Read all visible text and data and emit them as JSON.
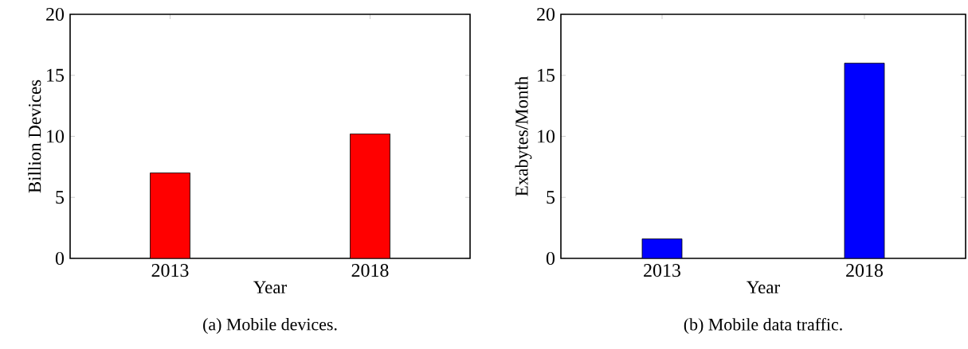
{
  "chart_data": [
    {
      "type": "bar",
      "title": "(a) Mobile devices.",
      "xlabel": "Year",
      "ylabel": "Billion Devices",
      "categories": [
        "2013",
        "2018"
      ],
      "values": [
        7.0,
        10.2
      ],
      "color": "#ff0000",
      "ylim": [
        0,
        20
      ],
      "yticks": [
        0,
        5,
        10,
        15,
        20
      ]
    },
    {
      "type": "bar",
      "title": "(b) Mobile data traffic.",
      "xlabel": "Year",
      "ylabel": "Exabytes/Month",
      "categories": [
        "2013",
        "2018"
      ],
      "values": [
        1.6,
        16.0
      ],
      "color": "#0000ff",
      "ylim": [
        0,
        20
      ],
      "yticks": [
        0,
        5,
        10,
        15,
        20
      ]
    }
  ]
}
